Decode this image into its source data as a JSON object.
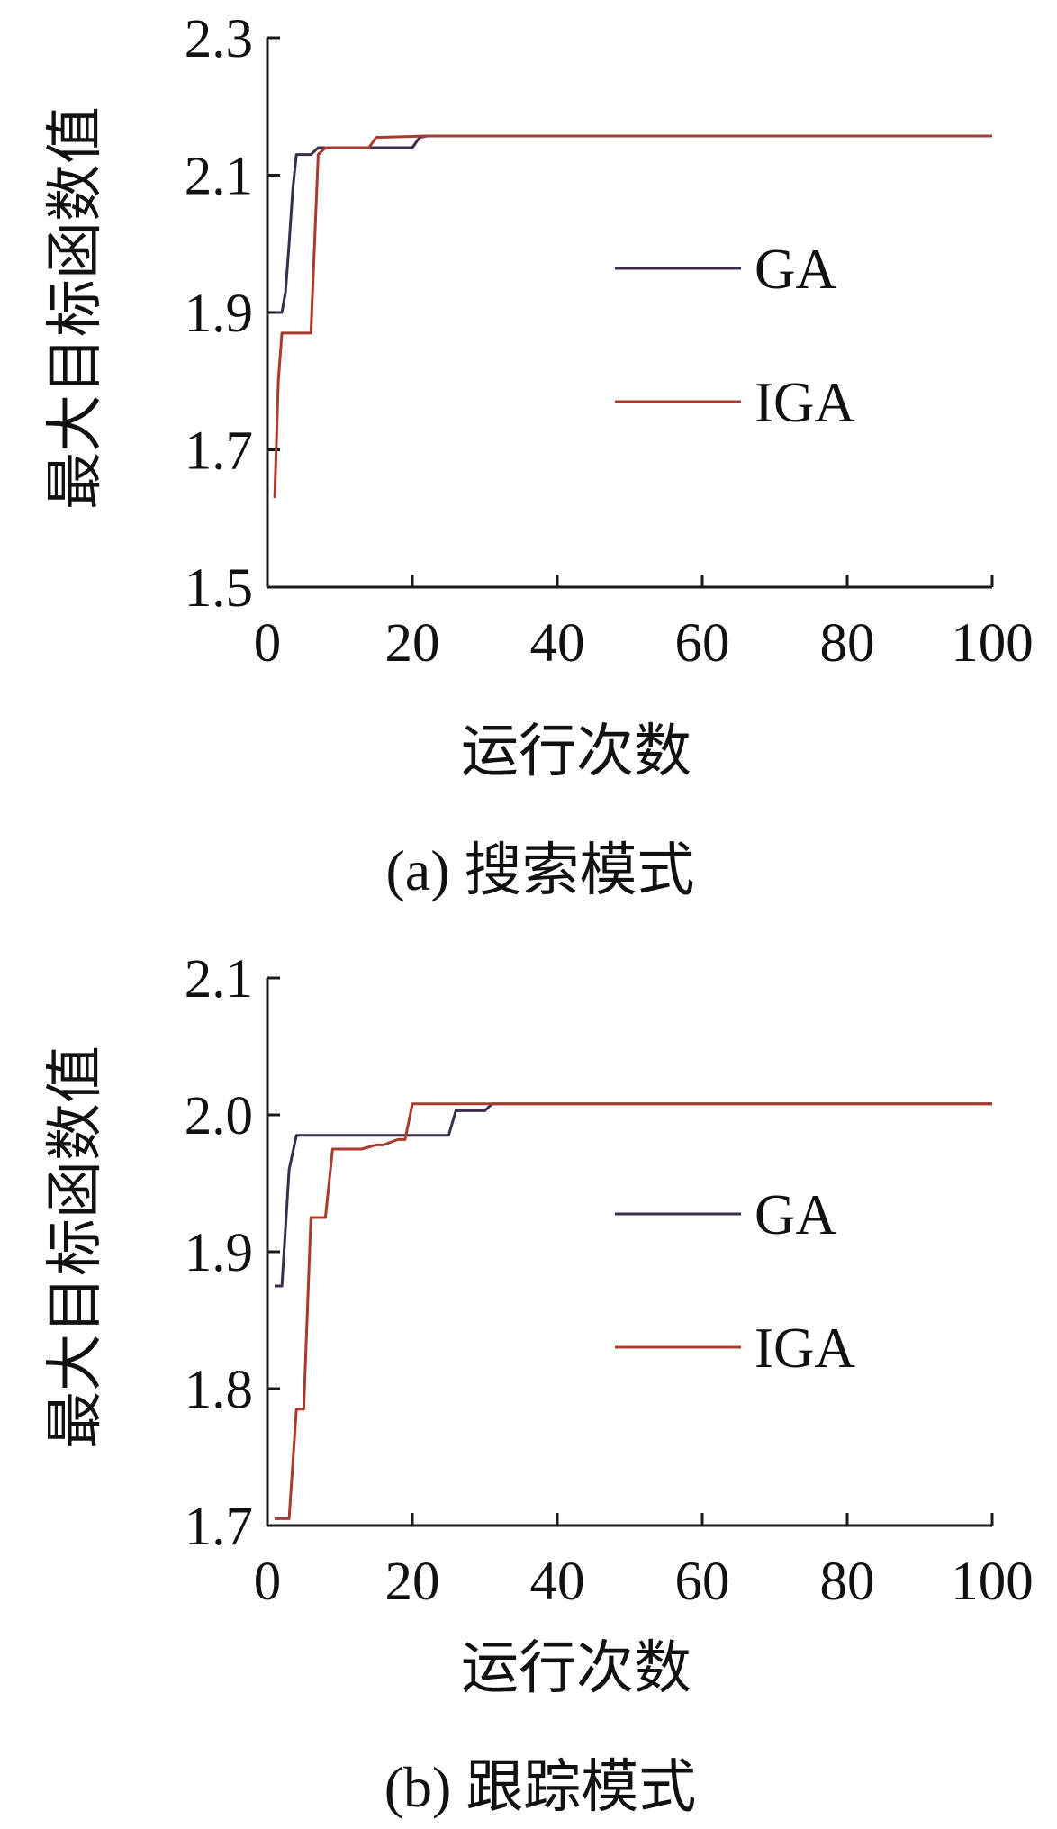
{
  "chart_data": [
    {
      "type": "line",
      "caption": "(a) 搜索模式",
      "xlabel": "运行次数",
      "ylabel": "最大目标函数值",
      "xlim": [
        0,
        100
      ],
      "ylim": [
        1.5,
        2.3
      ],
      "xticks": [
        "0",
        "20",
        "40",
        "60",
        "80",
        "100"
      ],
      "yticks": [
        "1.5",
        "1.7",
        "1.9",
        "2.1",
        "2.3"
      ],
      "grid": false,
      "legend_position": "right-middle",
      "series": [
        {
          "name": "GA",
          "color": "#3a2e4a",
          "x": [
            1,
            2,
            2.5,
            3,
            3.5,
            4,
            5,
            6,
            7,
            8,
            14,
            19,
            20,
            21,
            22,
            100
          ],
          "y": [
            1.9,
            1.9,
            1.93,
            2.0,
            2.08,
            2.13,
            2.13,
            2.13,
            2.14,
            2.14,
            2.14,
            2.14,
            2.14,
            2.155,
            2.157,
            2.157
          ]
        },
        {
          "name": "IGA",
          "color": "#a83a2e",
          "x": [
            1,
            1.5,
            2,
            3,
            5,
            6,
            7,
            8,
            14,
            15,
            22,
            100
          ],
          "y": [
            1.63,
            1.8,
            1.87,
            1.87,
            1.87,
            1.87,
            2.13,
            2.14,
            2.14,
            2.155,
            2.157,
            2.157
          ]
        }
      ]
    },
    {
      "type": "line",
      "caption": "(b) 跟踪模式",
      "xlabel": "运行次数",
      "ylabel": "最大目标函数值",
      "xlim": [
        0,
        100
      ],
      "ylim": [
        1.7,
        2.1
      ],
      "xticks": [
        "0",
        "20",
        "40",
        "60",
        "80",
        "100"
      ],
      "yticks": [
        "1.7",
        "1.8",
        "1.9",
        "2.0",
        "2.1"
      ],
      "grid": false,
      "legend_position": "right-middle",
      "series": [
        {
          "name": "GA",
          "color": "#3a2e4a",
          "x": [
            1,
            2,
            3,
            4,
            25,
            26,
            30,
            31,
            32,
            100
          ],
          "y": [
            1.875,
            1.875,
            1.96,
            1.985,
            1.985,
            2.003,
            2.003,
            2.008,
            2.008,
            2.008
          ]
        },
        {
          "name": "IGA",
          "color": "#a83a2e",
          "x": [
            1,
            2,
            3,
            4,
            5,
            6,
            7,
            8,
            9,
            10,
            13,
            15,
            16,
            18,
            19,
            20,
            21,
            100
          ],
          "y": [
            1.705,
            1.705,
            1.705,
            1.785,
            1.785,
            1.925,
            1.925,
            1.925,
            1.975,
            1.975,
            1.975,
            1.978,
            1.978,
            1.982,
            1.982,
            2.008,
            2.008,
            2.008
          ]
        }
      ]
    }
  ]
}
